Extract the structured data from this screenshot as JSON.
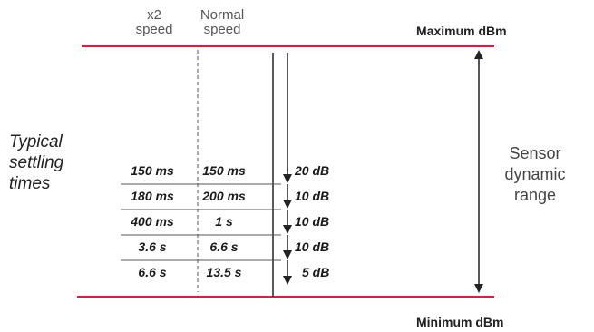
{
  "headers": {
    "col1": [
      "x2",
      "speed"
    ],
    "col2": [
      "Normal",
      "speed"
    ]
  },
  "max_label": "Maximum dBm",
  "min_label": "Minimum dBm",
  "side_label": [
    "Typical",
    "settling",
    "times"
  ],
  "range_label": [
    "Sensor",
    "dynamic",
    "range"
  ],
  "rows": [
    {
      "x2": "150 ms",
      "normal": "150 ms",
      "step": "20 dB"
    },
    {
      "x2": "180 ms",
      "normal": "200 ms",
      "step": "10 dB"
    },
    {
      "x2": "400 ms",
      "normal": "1 s",
      "step": "10 dB"
    },
    {
      "x2": "3.6 s",
      "normal": "6.6 s",
      "step": "10 dB"
    },
    {
      "x2": "6.6 s",
      "normal": "13.5 s",
      "step": "5 dB"
    }
  ],
  "colors": {
    "bound_line": "#e3183c",
    "line": "#222222",
    "divider": "#555555"
  }
}
